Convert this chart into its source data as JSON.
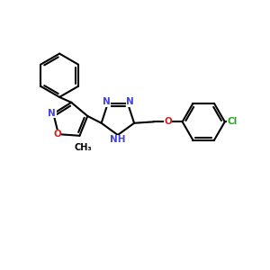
{
  "bg_color": "#ffffff",
  "bond_color": "#000000",
  "n_color": "#4444dd",
  "o_color": "#cc2222",
  "cl_color": "#22aa22",
  "lw": 1.5,
  "fs": 7.5,
  "fig_w": 3.0,
  "fig_h": 3.0,
  "dpi": 100,
  "xlim": [
    0,
    10
  ],
  "ylim": [
    0,
    10
  ]
}
